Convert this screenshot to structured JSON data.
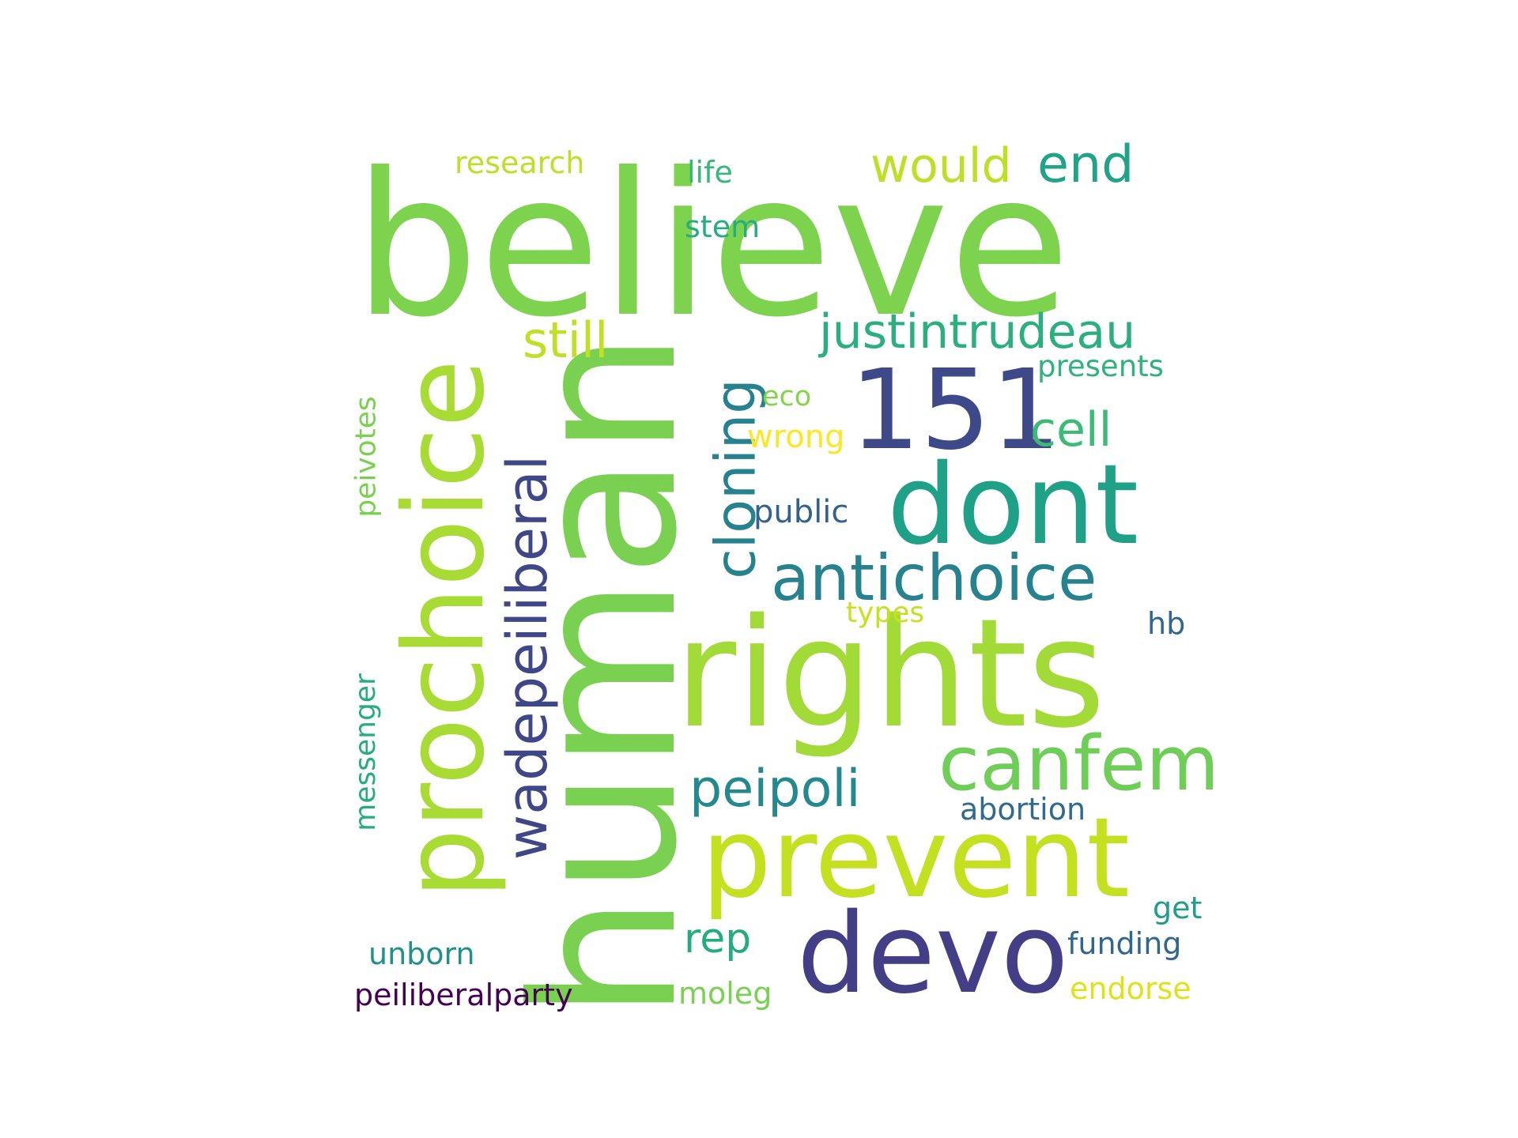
{
  "words": [
    {
      "text": "believe",
      "color": "#7ed34e"
    },
    {
      "text": "human",
      "color": "#7ad151"
    },
    {
      "text": "rights",
      "color": "#a2da37"
    },
    {
      "text": "prochoice",
      "color": "#a8db34"
    },
    {
      "text": "prevent",
      "color": "#c5e021"
    },
    {
      "text": "devo",
      "color": "#433e85"
    },
    {
      "text": "dont",
      "color": "#1fa187"
    },
    {
      "text": "151",
      "color": "#3e4989"
    },
    {
      "text": "canfem",
      "color": "#6ece58"
    },
    {
      "text": "antichoice",
      "color": "#26828e"
    },
    {
      "text": "wadepeiliberal",
      "color": "#3f4788"
    },
    {
      "text": "cloning",
      "color": "#26828e"
    },
    {
      "text": "justintrudeau",
      "color": "#2ab07f"
    },
    {
      "text": "peipoli",
      "color": "#23898e"
    },
    {
      "text": "still",
      "color": "#c0df25"
    },
    {
      "text": "would",
      "color": "#bddf26"
    },
    {
      "text": "end",
      "color": "#20a386"
    },
    {
      "text": "cell",
      "color": "#3bbb75"
    },
    {
      "text": "rep",
      "color": "#25ab82"
    },
    {
      "text": "research",
      "color": "#bddf26"
    },
    {
      "text": "life",
      "color": "#37b878"
    },
    {
      "text": "stem",
      "color": "#25ac82"
    },
    {
      "text": "presents",
      "color": "#2eb37c"
    },
    {
      "text": "eco",
      "color": "#84d44b"
    },
    {
      "text": "wrong",
      "color": "#fde725"
    },
    {
      "text": "public",
      "color": "#33638d"
    },
    {
      "text": "peivotes",
      "color": "#7ad151"
    },
    {
      "text": "types",
      "color": "#c8e020"
    },
    {
      "text": "hb",
      "color": "#31678e"
    },
    {
      "text": "messenger",
      "color": "#25ac82"
    },
    {
      "text": "abortion",
      "color": "#306a8e"
    },
    {
      "text": "get",
      "color": "#1f9e89"
    },
    {
      "text": "funding",
      "color": "#31678e"
    },
    {
      "text": "unborn",
      "color": "#21918c"
    },
    {
      "text": "peiliberalparty",
      "color": "#440154"
    },
    {
      "text": "moleg",
      "color": "#7ad151"
    },
    {
      "text": "endorse",
      "color": "#dde318"
    }
  ]
}
